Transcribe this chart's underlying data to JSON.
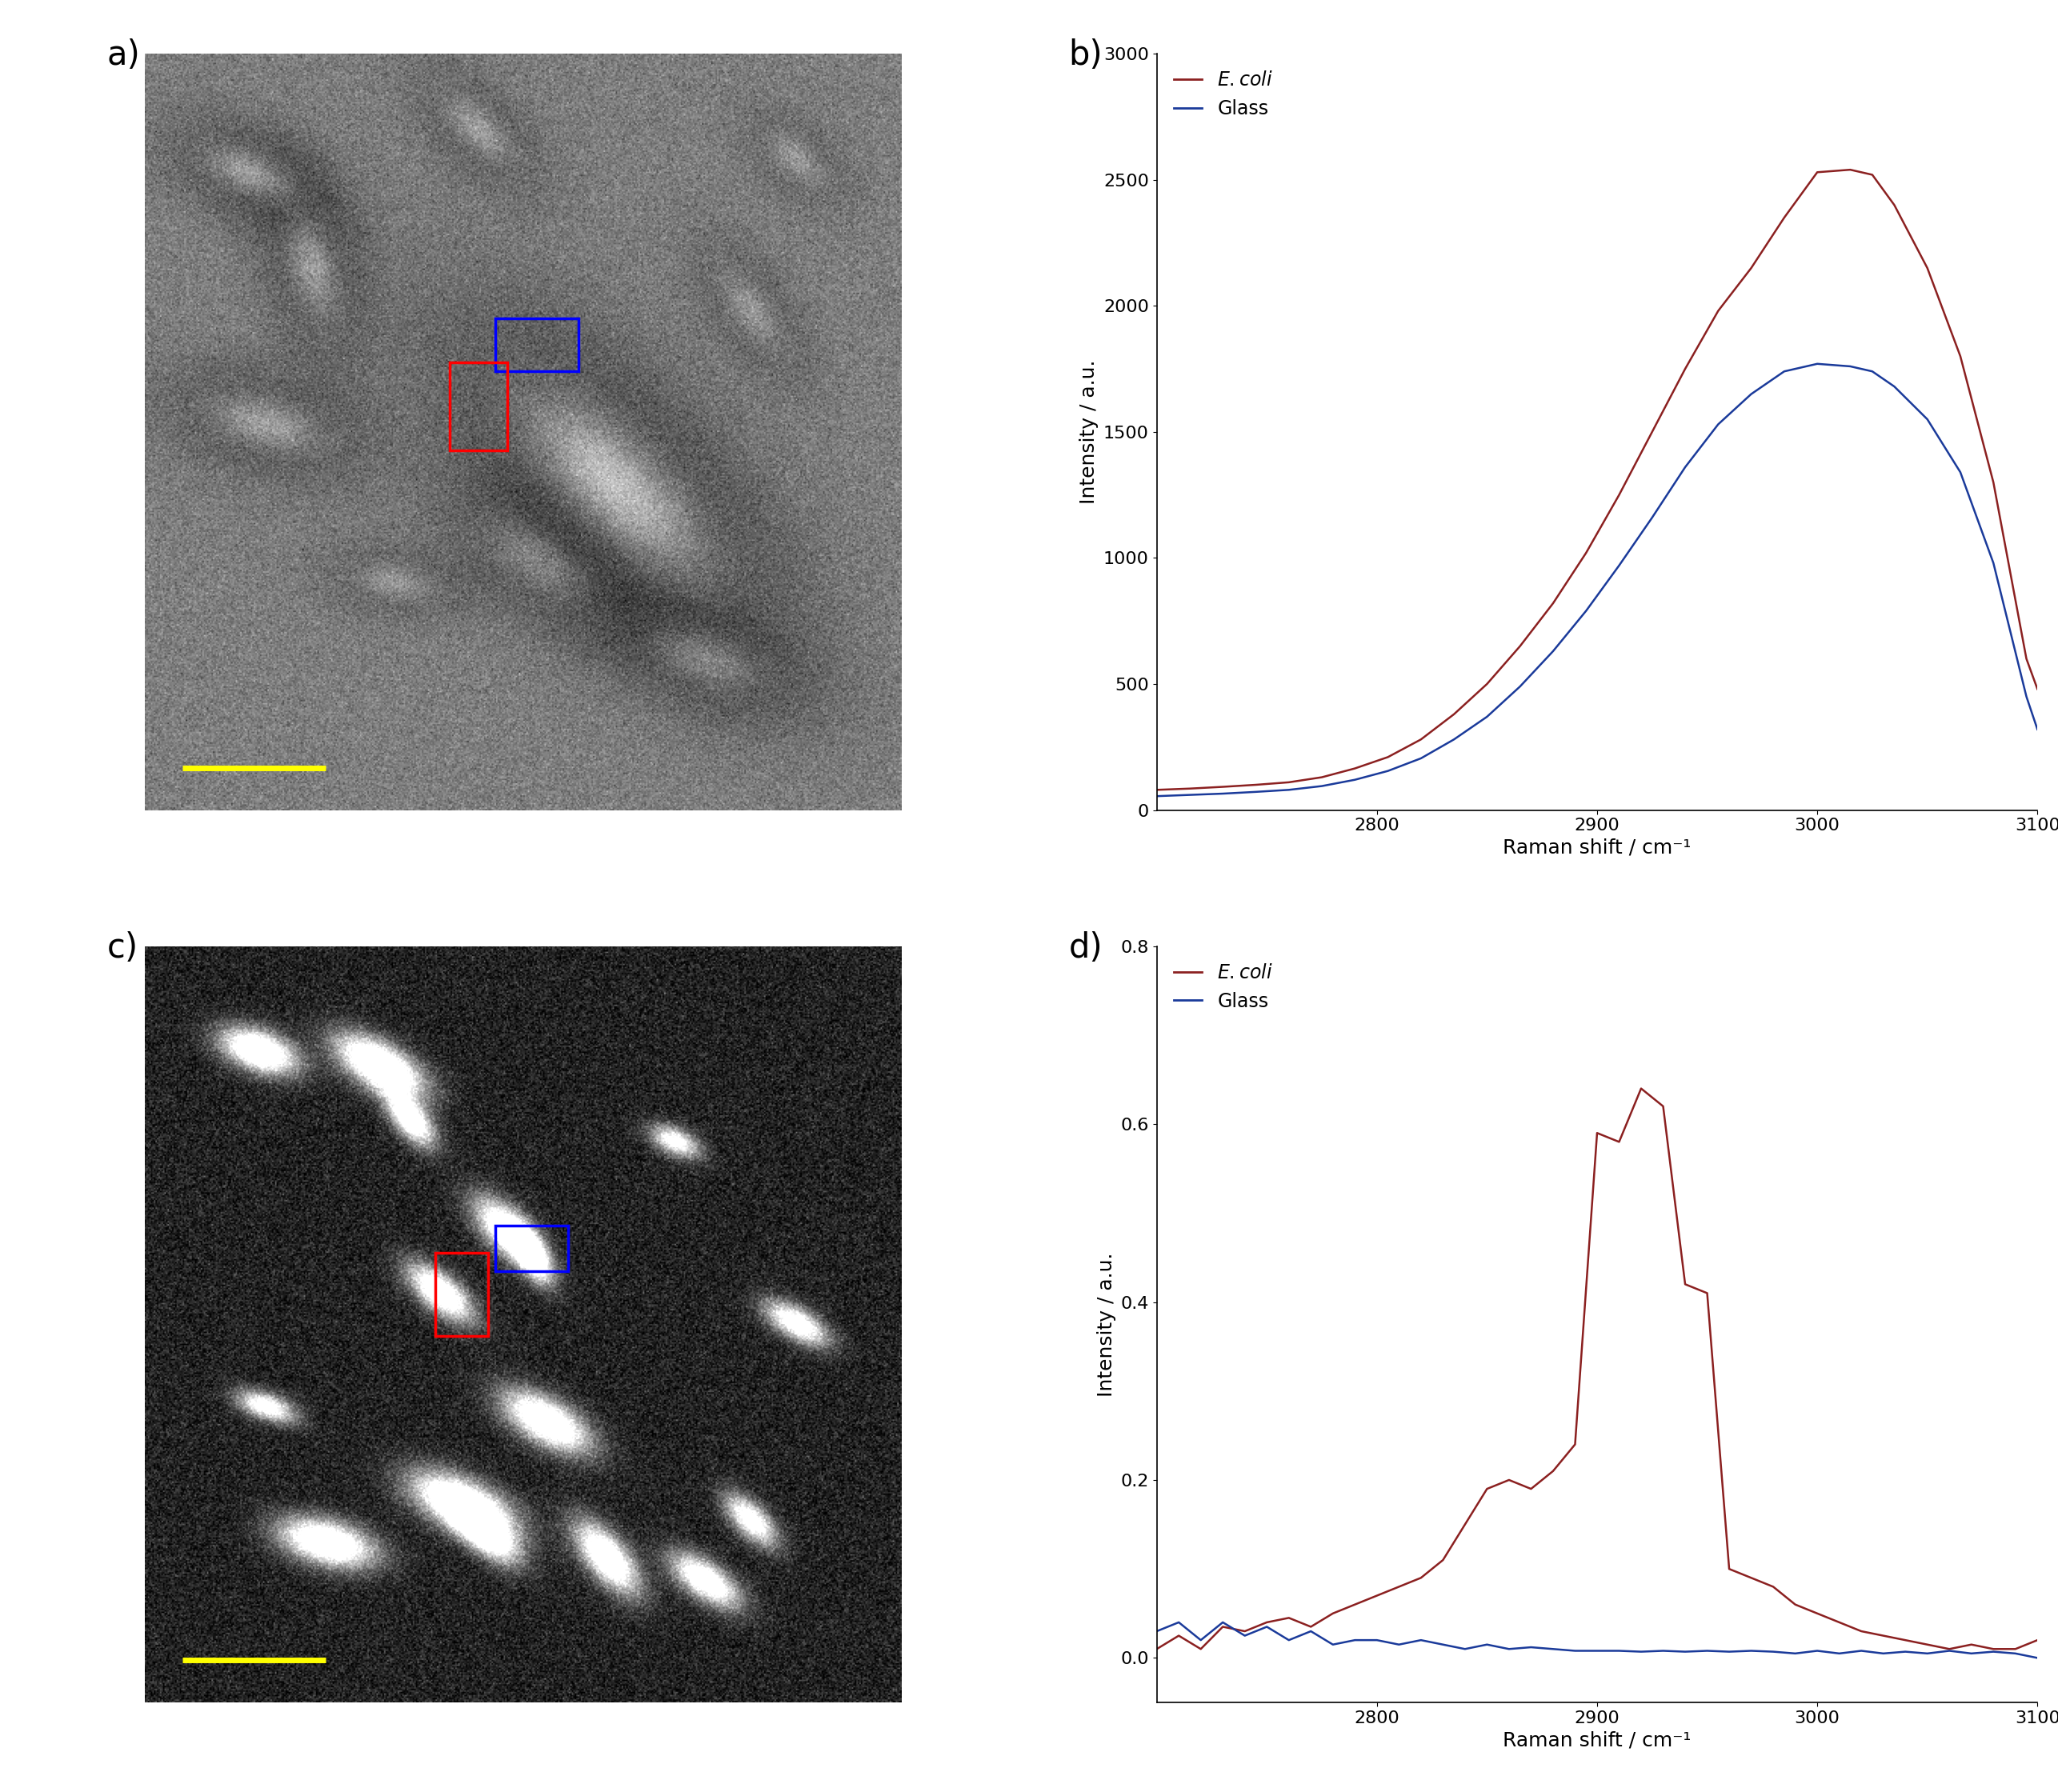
{
  "panel_b": {
    "ecoli_x": [
      2700,
      2715,
      2730,
      2745,
      2760,
      2775,
      2790,
      2805,
      2820,
      2835,
      2850,
      2865,
      2880,
      2895,
      2910,
      2925,
      2940,
      2955,
      2970,
      2985,
      3000,
      3015,
      3025,
      3035,
      3050,
      3065,
      3080,
      3095,
      3100
    ],
    "ecoli_y": [
      80,
      85,
      92,
      100,
      110,
      130,
      165,
      210,
      280,
      380,
      500,
      650,
      820,
      1020,
      1250,
      1500,
      1750,
      1980,
      2150,
      2350,
      2530,
      2540,
      2520,
      2400,
      2150,
      1800,
      1300,
      600,
      480
    ],
    "glass_x": [
      2700,
      2715,
      2730,
      2745,
      2760,
      2775,
      2790,
      2805,
      2820,
      2835,
      2850,
      2865,
      2880,
      2895,
      2910,
      2925,
      2940,
      2955,
      2970,
      2985,
      3000,
      3015,
      3025,
      3035,
      3050,
      3065,
      3080,
      3095,
      3100
    ],
    "glass_y": [
      55,
      60,
      65,
      72,
      80,
      95,
      120,
      155,
      205,
      280,
      370,
      490,
      630,
      790,
      970,
      1160,
      1360,
      1530,
      1650,
      1740,
      1770,
      1760,
      1740,
      1680,
      1550,
      1340,
      980,
      450,
      320
    ],
    "ecoli_color": "#8B2020",
    "glass_color": "#1A3A9A",
    "xlabel": "Raman shift / cm⁻¹",
    "ylabel": "Intensity / a.u.",
    "ylim": [
      0,
      3000
    ],
    "xlim": [
      2700,
      3100
    ],
    "yticks": [
      0,
      500,
      1000,
      1500,
      2000,
      2500,
      3000
    ],
    "xticks": [
      2800,
      2900,
      3000,
      3100
    ]
  },
  "panel_d": {
    "ecoli_x": [
      2700,
      2710,
      2720,
      2730,
      2740,
      2750,
      2760,
      2770,
      2780,
      2790,
      2800,
      2810,
      2820,
      2830,
      2840,
      2850,
      2860,
      2870,
      2880,
      2890,
      2900,
      2910,
      2920,
      2930,
      2940,
      2950,
      2960,
      2970,
      2980,
      2990,
      3000,
      3010,
      3020,
      3030,
      3040,
      3050,
      3060,
      3070,
      3080,
      3090,
      3100
    ],
    "ecoli_y": [
      0.01,
      0.025,
      0.01,
      0.035,
      0.03,
      0.04,
      0.045,
      0.035,
      0.05,
      0.06,
      0.07,
      0.08,
      0.09,
      0.11,
      0.15,
      0.19,
      0.2,
      0.19,
      0.21,
      0.24,
      0.59,
      0.58,
      0.64,
      0.62,
      0.42,
      0.41,
      0.1,
      0.09,
      0.08,
      0.06,
      0.05,
      0.04,
      0.03,
      0.025,
      0.02,
      0.015,
      0.01,
      0.015,
      0.01,
      0.01,
      0.02
    ],
    "glass_x": [
      2700,
      2710,
      2720,
      2730,
      2740,
      2750,
      2760,
      2770,
      2780,
      2790,
      2800,
      2810,
      2820,
      2830,
      2840,
      2850,
      2860,
      2870,
      2880,
      2890,
      2900,
      2910,
      2920,
      2930,
      2940,
      2950,
      2960,
      2970,
      2980,
      2990,
      3000,
      3010,
      3020,
      3030,
      3040,
      3050,
      3060,
      3070,
      3080,
      3090,
      3100
    ],
    "glass_y": [
      0.03,
      0.04,
      0.02,
      0.04,
      0.025,
      0.035,
      0.02,
      0.03,
      0.015,
      0.02,
      0.02,
      0.015,
      0.02,
      0.015,
      0.01,
      0.015,
      0.01,
      0.012,
      0.01,
      0.008,
      0.008,
      0.008,
      0.007,
      0.008,
      0.007,
      0.008,
      0.007,
      0.008,
      0.007,
      0.005,
      0.008,
      0.005,
      0.008,
      0.005,
      0.007,
      0.005,
      0.008,
      0.005,
      0.007,
      0.005,
      0.0
    ],
    "ecoli_color": "#8B2020",
    "glass_color": "#1A3A9A",
    "xlabel": "Raman shift / cm⁻¹",
    "ylabel": "Intensity / a.u.",
    "ylim": [
      -0.05,
      0.8
    ],
    "xlim": [
      2700,
      3100
    ],
    "yticks": [
      0.0,
      0.2,
      0.4,
      0.6,
      0.8
    ],
    "xticks": [
      2800,
      2900,
      3000,
      3100
    ]
  },
  "panel_labels": {
    "a": "a)",
    "b": "b)",
    "c": "c)",
    "d": "d)"
  },
  "background_color": "#FFFFFF",
  "label_fontsize": 30,
  "axis_fontsize": 18,
  "tick_fontsize": 16,
  "legend_fontsize": 17
}
